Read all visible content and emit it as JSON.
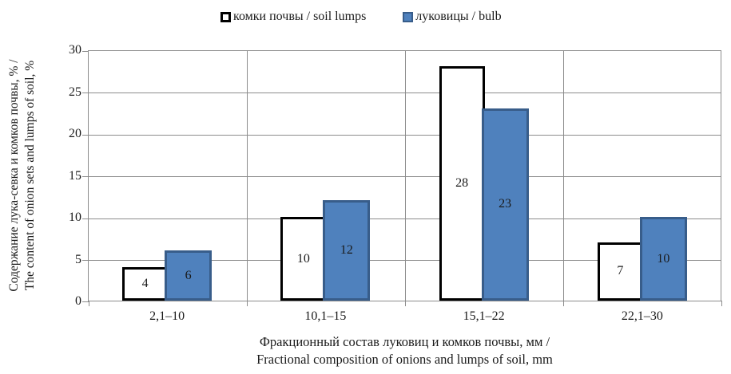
{
  "legend": {
    "items": [
      {
        "label": "комки почвы / soil lumps"
      },
      {
        "label": "луковицы / bulb"
      }
    ]
  },
  "chart_data": {
    "type": "bar",
    "categories": [
      "2,1–10",
      "10,1–15",
      "15,1–22",
      "22,1–30"
    ],
    "series": [
      {
        "name": "комки почвы / soil lumps",
        "values": [
          4,
          10,
          28,
          7
        ],
        "fill": "#FFFFFF",
        "border": "#000000"
      },
      {
        "name": "луковицы / bulb",
        "values": [
          6,
          12,
          23,
          10
        ],
        "fill": "#4F81BD",
        "border": "#385D8A"
      }
    ],
    "data_labels": true,
    "ylim": [
      0,
      30
    ],
    "ytick_step": 5,
    "yticks": [
      0,
      5,
      10,
      15,
      20,
      25,
      30
    ],
    "grid": true,
    "legend_position": "top",
    "ylabel": "Содержание лука-севка и комков почвы, % / The content of onion sets and lumps of soil, %",
    "xlabel": "Фракционный состав луковиц и комков почвы, мм / Fractional composition of onions and lumps of soil, mm",
    "ylabel_lines": [
      "Содержание лука-севка и комков почвы, % /",
      "The content of onion sets and lumps of soil, %"
    ],
    "xlabel_lines": [
      "Фракционный состав луковиц и комков почвы, мм /",
      "Fractional composition of onions and lumps of soil, mm"
    ]
  },
  "colors": {
    "grid": "#8C8C8C",
    "text": "#1A1A1A",
    "soil_fill": "#FFFFFF",
    "soil_border": "#000000",
    "bulb_fill": "#4F81BD",
    "bulb_border": "#385D8A"
  }
}
